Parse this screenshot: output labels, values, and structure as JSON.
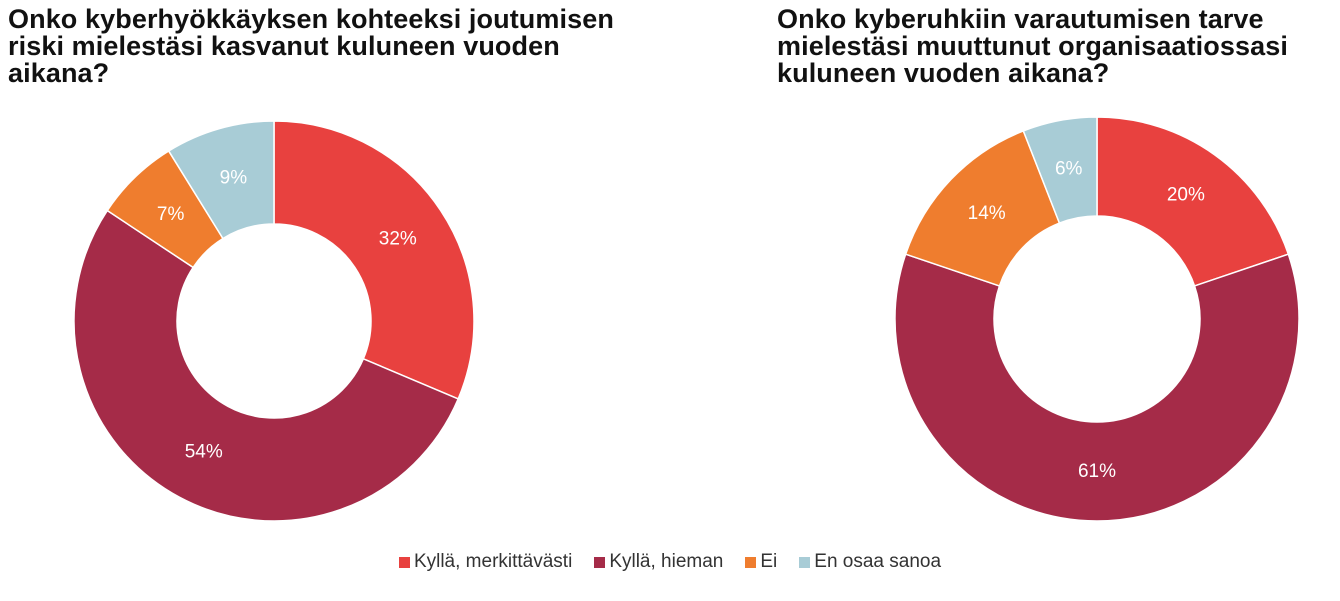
{
  "chart_data": [
    {
      "type": "pie",
      "donut": true,
      "title": "Onko kyberhyökkäyksen kohteeksi joutumisen\nriski mielestäsi kasvanut kuluneen vuoden\naikana?",
      "categories": [
        "Kyllä, merkittävästi",
        "Kyllä, hieman",
        "Ei",
        "En osaa sanoa"
      ],
      "values": [
        32,
        54,
        7,
        9
      ],
      "labels": [
        "32%",
        "54%",
        "7%",
        "9%"
      ]
    },
    {
      "type": "pie",
      "donut": true,
      "title": "Onko kyberuhkiin varautumisen tarve\nmielestäsi muuttunut organisaatiossasi\nkuluneen vuoden aikana?",
      "categories": [
        "Kyllä, merkittävästi",
        "Kyllä, hieman",
        "Ei",
        "En osaa sanoa"
      ],
      "values": [
        20,
        61,
        14,
        6
      ],
      "labels": [
        "20%",
        "61%",
        "14%",
        "6%"
      ]
    }
  ],
  "legend": {
    "placement": "bottom",
    "items": [
      {
        "label": "Kyllä, merkittävästi",
        "color": "#e8413f"
      },
      {
        "label": "Kyllä, hieman",
        "color": "#a52b48"
      },
      {
        "label": "Ei",
        "color": "#ef7d2e"
      },
      {
        "label": "En osaa sanoa",
        "color": "#a8ccd6"
      }
    ]
  }
}
